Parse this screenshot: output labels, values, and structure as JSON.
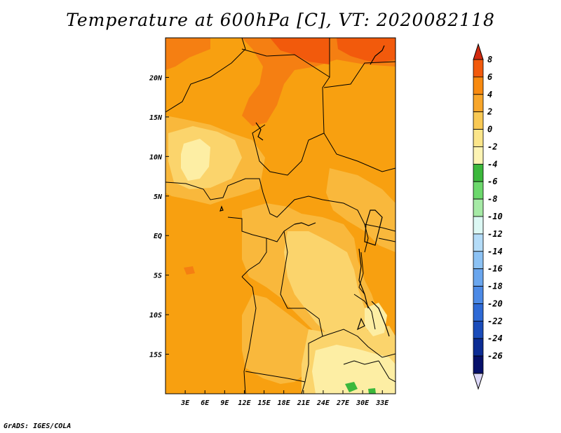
{
  "title": "Temperature at 600hPa [C], VT: 2020082118",
  "footer": "GrADS: IGES/COLA",
  "map": {
    "lon_range": [
      0,
      35
    ],
    "lat_range": [
      -20,
      25
    ],
    "x_ticks": [
      {
        "value": 3,
        "label": "3E"
      },
      {
        "value": 6,
        "label": "6E"
      },
      {
        "value": 9,
        "label": "9E"
      },
      {
        "value": 12,
        "label": "12E"
      },
      {
        "value": 15,
        "label": "15E"
      },
      {
        "value": 18,
        "label": "18E"
      },
      {
        "value": 21,
        "label": "21E"
      },
      {
        "value": 24,
        "label": "24E"
      },
      {
        "value": 27,
        "label": "27E"
      },
      {
        "value": 30,
        "label": "30E"
      },
      {
        "value": 33,
        "label": "33E"
      }
    ],
    "y_ticks": [
      {
        "value": 20,
        "label": "20N"
      },
      {
        "value": 15,
        "label": "15N"
      },
      {
        "value": 10,
        "label": "10N"
      },
      {
        "value": 5,
        "label": "5N"
      },
      {
        "value": 0,
        "label": "EQ"
      },
      {
        "value": -5,
        "label": "5S"
      },
      {
        "value": -10,
        "label": "10S"
      },
      {
        "value": -15,
        "label": "15S"
      }
    ]
  },
  "colorbar": {
    "labels": [
      "8",
      "6",
      "4",
      "2",
      "0",
      "-2",
      "-4",
      "-6",
      "-8",
      "-10",
      "-12",
      "-14",
      "-16",
      "-18",
      "-20",
      "-22",
      "-24",
      "-26"
    ],
    "colors": [
      "#d22a0f",
      "#f25a0c",
      "#f88a10",
      "#f8a62a",
      "#f9c954",
      "#fbe58a",
      "#fdf4b4",
      "#3cb83c",
      "#6cd86c",
      "#a6eaa6",
      "#dcf8f4",
      "#b4dcf8",
      "#8cc2f4",
      "#6aa6ee",
      "#4c8ae6",
      "#2e6ad6",
      "#1a4cba",
      "#0c2c94",
      "#06106a",
      "#dcd8f8"
    ]
  },
  "field_colors": {
    "c2_4": "#f8a010",
    "c0_2": "#f9b83c",
    "cm2_0": "#fbd46c",
    "cm4_m2": "#fdeea4",
    "c4_6": "#f57f12",
    "c6_8": "#f25a0c",
    "cm6_m4": "#3cb83c"
  }
}
